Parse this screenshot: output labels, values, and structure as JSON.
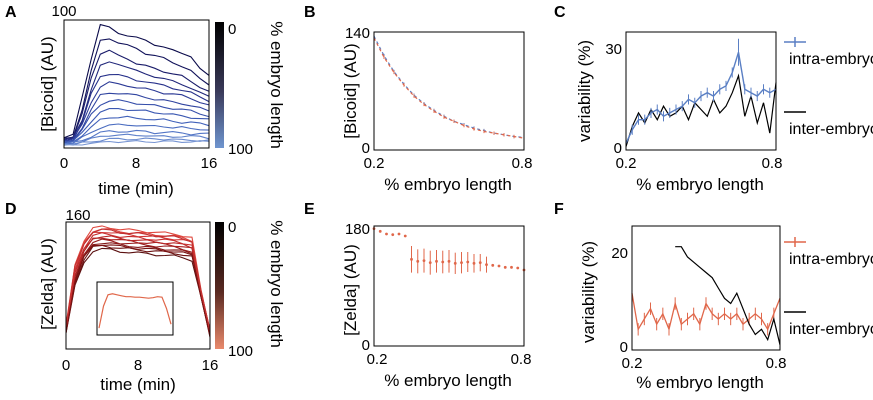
{
  "panels": {
    "A": {
      "label": "A",
      "chart_data": {
        "type": "line",
        "xlabel": "time (min)",
        "ylabel": "[Bicoid] (AU)",
        "xlim": [
          0,
          16
        ],
        "ylim": [
          0,
          100
        ],
        "xticks": [
          "0",
          "8",
          "16"
        ],
        "ytop_label": "100",
        "colorbar": {
          "label": "% embryo length",
          "top": "0",
          "bottom": "100",
          "top_color": "#000000",
          "bottom_color": "#6f95cf"
        },
        "series": [
          {
            "color": "#0a0a4a",
            "values": [
              8,
              10,
              40,
              70,
              96,
              94,
              90,
              88,
              86,
              84,
              81,
              79,
              76,
              74,
              72,
              62,
              56
            ]
          },
          {
            "color": "#11125a",
            "values": [
              7,
              9,
              30,
              60,
              84,
              86,
              82,
              80,
              78,
              74,
              72,
              70,
              67,
              64,
              60,
              54,
              50
            ]
          },
          {
            "color": "#1a1c6a",
            "values": [
              6,
              8,
              26,
              55,
              74,
              76,
              72,
              70,
              66,
              64,
              62,
              60,
              58,
              56,
              52,
              48,
              44
            ]
          },
          {
            "color": "#20267a",
            "values": [
              6,
              8,
              22,
              46,
              64,
              67,
              66,
              63,
              60,
              58,
              56,
              54,
              52,
              50,
              47,
              43,
              40
            ]
          },
          {
            "color": "#26308a",
            "values": [
              6,
              7,
              20,
              42,
              56,
              58,
              57,
              55,
              53,
              52,
              50,
              49,
              47,
              45,
              43,
              40,
              37
            ]
          },
          {
            "color": "#2c3a96",
            "values": [
              5,
              7,
              18,
              36,
              48,
              51,
              50,
              49,
              47,
              46,
              45,
              43,
              42,
              41,
              39,
              36,
              33
            ]
          },
          {
            "color": "#3044a0",
            "values": [
              5,
              6,
              16,
              30,
              41,
              43,
              43,
              42,
              41,
              40,
              38,
              37,
              36,
              35,
              33,
              31,
              29
            ]
          },
          {
            "color": "#354eaa",
            "values": [
              5,
              6,
              14,
              26,
              34,
              37,
              37,
              36,
              35,
              34,
              33,
              32,
              31,
              30,
              29,
              27,
              25
            ]
          },
          {
            "color": "#3b58b2",
            "values": [
              4,
              5,
              12,
              21,
              28,
              30,
              31,
              30,
              29,
              29,
              28,
              27,
              26,
              25,
              24,
              23,
              22
            ]
          },
          {
            "color": "#4262ba",
            "values": [
              4,
              5,
              10,
              16,
              22,
              24,
              24,
              24,
              23,
              23,
              22,
              22,
              21,
              20,
              20,
              19,
              18
            ]
          },
          {
            "color": "#4a6cc0",
            "values": [
              4,
              4,
              8,
              12,
              16,
              18,
              18,
              18,
              18,
              17,
              17,
              17,
              16,
              16,
              15,
              15,
              14
            ]
          },
          {
            "color": "#5476c6",
            "values": [
              3,
              4,
              6,
              9,
              12,
              13,
              13,
              13,
              13,
              13,
              12,
              12,
              12,
              12,
              11,
              11,
              11
            ]
          },
          {
            "color": "#5e80ca",
            "values": [
              3,
              3,
              5,
              7,
              9,
              10,
              10,
              10,
              10,
              10,
              9,
              9,
              9,
              9,
              9,
              9,
              8
            ]
          },
          {
            "color": "#6a8ace",
            "values": [
              3,
              3,
              4,
              5,
              6,
              7,
              7,
              7,
              7,
              7,
              7,
              7,
              7,
              6,
              6,
              6,
              6
            ]
          },
          {
            "color": "#7694d2",
            "values": [
              2,
              2,
              3,
              4,
              4,
              5,
              5,
              5,
              5,
              5,
              5,
              5,
              5,
              5,
              5,
              5,
              5
            ]
          }
        ]
      }
    },
    "B": {
      "label": "B",
      "chart_data": {
        "type": "line",
        "xlabel": "% embryo length",
        "ylabel": "[Bicoid] (AU)",
        "xlim": [
          0.2,
          0.8
        ],
        "ylim": [
          0,
          140
        ],
        "xticks": [
          "0.2",
          "0.8"
        ],
        "yticks": [
          "0",
          "140"
        ],
        "x": [
          0.2,
          0.24,
          0.28,
          0.32,
          0.36,
          0.4,
          0.44,
          0.48,
          0.52,
          0.56,
          0.6,
          0.64,
          0.68,
          0.72,
          0.76,
          0.8
        ],
        "series": [
          {
            "style": "dashed",
            "color": "#5a7fc4",
            "values": [
              135,
              112,
              93,
              78,
              65,
              55,
              47,
              40,
              34,
              30,
              26,
              23,
              20,
              18,
              16,
              15
            ]
          },
          {
            "style": "dashed",
            "color": "#e0674a",
            "values": [
              133,
              110,
              92,
              77,
              64,
              54,
              46,
              39,
              34,
              29,
              25,
              22,
              20,
              18,
              16,
              14
            ]
          }
        ]
      }
    },
    "C": {
      "label": "C",
      "chart_data": {
        "type": "line",
        "xlabel": "% embryo length",
        "ylabel": "variability (%)",
        "xlim": [
          0.2,
          0.8
        ],
        "ylim": [
          0,
          35
        ],
        "xticks": [
          "0.2",
          "0.8"
        ],
        "yticks": [
          "0",
          "30"
        ],
        "x": [
          0.2,
          0.225,
          0.25,
          0.275,
          0.3,
          0.325,
          0.35,
          0.375,
          0.4,
          0.425,
          0.45,
          0.475,
          0.5,
          0.525,
          0.55,
          0.575,
          0.6,
          0.625,
          0.65,
          0.675,
          0.7,
          0.725,
          0.75,
          0.775,
          0.8
        ],
        "series": [
          {
            "name": "intra-embryo",
            "color": "#5a7fc4",
            "values": [
              2,
              6,
              9,
              9,
              11,
              12,
              10,
              11,
              12,
              13,
              15,
              14,
              16,
              17,
              16,
              18,
              19,
              23,
              29,
              18,
              17,
              16,
              18,
              17,
              18
            ]
          },
          {
            "name": "inter-embryo",
            "color": "#000000",
            "values": [
              1,
              7,
              11,
              8,
              12,
              9,
              13,
              10,
              11,
              13,
              9,
              14,
              12,
              10,
              15,
              11,
              13,
              17,
              22,
              10,
              16,
              8,
              14,
              5,
              20
            ]
          }
        ]
      }
    },
    "D": {
      "label": "D",
      "chart_data": {
        "type": "line",
        "xlabel": "time (min)",
        "ylabel": "[Zelda] (AU)",
        "xlim": [
          0,
          16
        ],
        "ylim": [
          0,
          160
        ],
        "xticks": [
          "0",
          "8",
          "16"
        ],
        "ytop_label": "160",
        "colorbar": {
          "label": "% embryo length",
          "top": "0",
          "bottom": "100",
          "top_color": "#000000",
          "bottom_color": "#e98a6c"
        },
        "template": [
          25,
          95,
          125,
          140,
          142,
          141,
          139,
          138,
          137,
          136,
          135,
          134,
          133,
          131,
          128,
          70,
          20
        ],
        "offsets": [
          -16,
          -12,
          -8,
          -5,
          -2,
          0,
          3,
          6,
          9,
          12,
          -10,
          8
        ],
        "colors": [
          "#5a0f0f",
          "#6e1414",
          "#821818",
          "#961c1c",
          "#a82020",
          "#b82626",
          "#c62c2c",
          "#d03434",
          "#d83e3a",
          "#e04a40",
          "#7a1212",
          "#c23030"
        ],
        "inset": {
          "type": "line",
          "color": "#e0674a",
          "values": [
            10,
            55,
            78,
            80,
            78,
            76,
            74,
            74,
            73,
            73,
            72,
            71,
            72,
            74,
            73,
            50,
            18
          ]
        }
      }
    },
    "E": {
      "label": "E",
      "chart_data": {
        "type": "scatter",
        "xlabel": "% embryo length",
        "ylabel": "[Zelda] (AU)",
        "xlim": [
          0.2,
          0.8
        ],
        "ylim": [
          0,
          180
        ],
        "xticks": [
          "0.2",
          "0.8"
        ],
        "yticks": [
          "0",
          "180"
        ],
        "color": "#e0674a",
        "x": [
          0.2,
          0.225,
          0.25,
          0.275,
          0.3,
          0.325,
          0.35,
          0.375,
          0.4,
          0.425,
          0.45,
          0.475,
          0.5,
          0.525,
          0.55,
          0.575,
          0.6,
          0.625,
          0.65,
          0.675,
          0.7,
          0.725,
          0.75,
          0.775,
          0.8
        ],
        "values": [
          176,
          172,
          168,
          167,
          168,
          165,
          130,
          127,
          128,
          125,
          127,
          126,
          127,
          124,
          125,
          126,
          124,
          125,
          122,
          121,
          120,
          118,
          118,
          117,
          114
        ],
        "errors": [
          0,
          0,
          0,
          0,
          0,
          0,
          20,
          18,
          18,
          18,
          17,
          17,
          17,
          16,
          16,
          15,
          14,
          13,
          12,
          0,
          0,
          0,
          0,
          0,
          0
        ]
      }
    },
    "F": {
      "label": "F",
      "chart_data": {
        "type": "line",
        "xlabel": "% embryo length",
        "ylabel": "variability (%)",
        "xlim": [
          0.2,
          0.8
        ],
        "ylim": [
          0,
          24
        ],
        "xticks": [
          "0.2",
          "0.8"
        ],
        "yticks": [
          "0",
          "20"
        ],
        "x": [
          0.2,
          0.225,
          0.25,
          0.275,
          0.3,
          0.325,
          0.35,
          0.375,
          0.4,
          0.425,
          0.45,
          0.475,
          0.5,
          0.525,
          0.55,
          0.575,
          0.6,
          0.625,
          0.65,
          0.675,
          0.7,
          0.725,
          0.75,
          0.775,
          0.8
        ],
        "series": [
          {
            "name": "intra-embryo",
            "color": "#e0674a",
            "values": [
              11,
              4,
              6,
              8,
              5,
              7,
              4,
              9,
              5,
              6,
              7,
              5,
              9,
              7,
              6,
              7,
              6,
              7,
              5,
              6,
              7,
              6,
              4,
              7,
              10
            ]
          },
          {
            "name": "inter-embryo",
            "color": "#000000",
            "x": [
              0.375,
              0.4,
              0.425,
              0.45,
              0.475,
              0.5,
              0.525,
              0.55,
              0.575,
              0.6,
              0.625,
              0.65,
              0.675,
              0.7,
              0.725,
              0.75,
              0.775,
              0.8
            ],
            "values": [
              20,
              20,
              18,
              17,
              16,
              15,
              14,
              12,
              10,
              9,
              11,
              8,
              5,
              3,
              4,
              2,
              6,
              1
            ]
          }
        ]
      }
    }
  }
}
